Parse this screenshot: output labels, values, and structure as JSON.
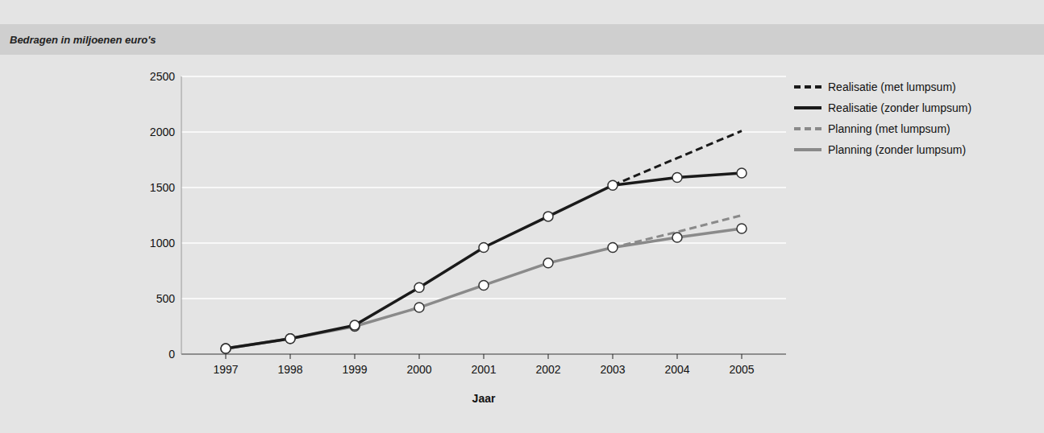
{
  "chart_data": {
    "type": "line",
    "title": "Bedragen in miljoenen euro's",
    "x_label": "Jaar",
    "categories": [
      "1997",
      "1998",
      "1999",
      "2000",
      "2001",
      "2002",
      "2003",
      "2004",
      "2005"
    ],
    "ylim": [
      0,
      2500
    ],
    "yticks": [
      0,
      500,
      1000,
      1500,
      2000,
      2500
    ],
    "grid": true,
    "legend": "right",
    "series": [
      {
        "name": "Realisatie (met lumpsum)",
        "color": "#1a1a1a",
        "line_style": "dashed",
        "marker": "none",
        "values": [
          null,
          null,
          null,
          null,
          null,
          null,
          1520,
          1765,
          2010
        ]
      },
      {
        "name": "Realisatie (zonder lumpsum)",
        "color": "#1a1a1a",
        "line_style": "solid",
        "marker": "circle",
        "values": [
          50,
          140,
          260,
          600,
          960,
          1240,
          1520,
          1590,
          1630
        ]
      },
      {
        "name": "Planning (met lumpsum)",
        "color": "#8a8a8a",
        "line_style": "dashed",
        "marker": "none",
        "values": [
          null,
          null,
          null,
          null,
          null,
          null,
          960,
          1100,
          1250
        ]
      },
      {
        "name": "Planning (zonder lumpsum)",
        "color": "#8a8a8a",
        "line_style": "solid",
        "marker": "circle",
        "values": [
          50,
          140,
          250,
          420,
          620,
          820,
          960,
          1050,
          1130
        ]
      }
    ]
  }
}
